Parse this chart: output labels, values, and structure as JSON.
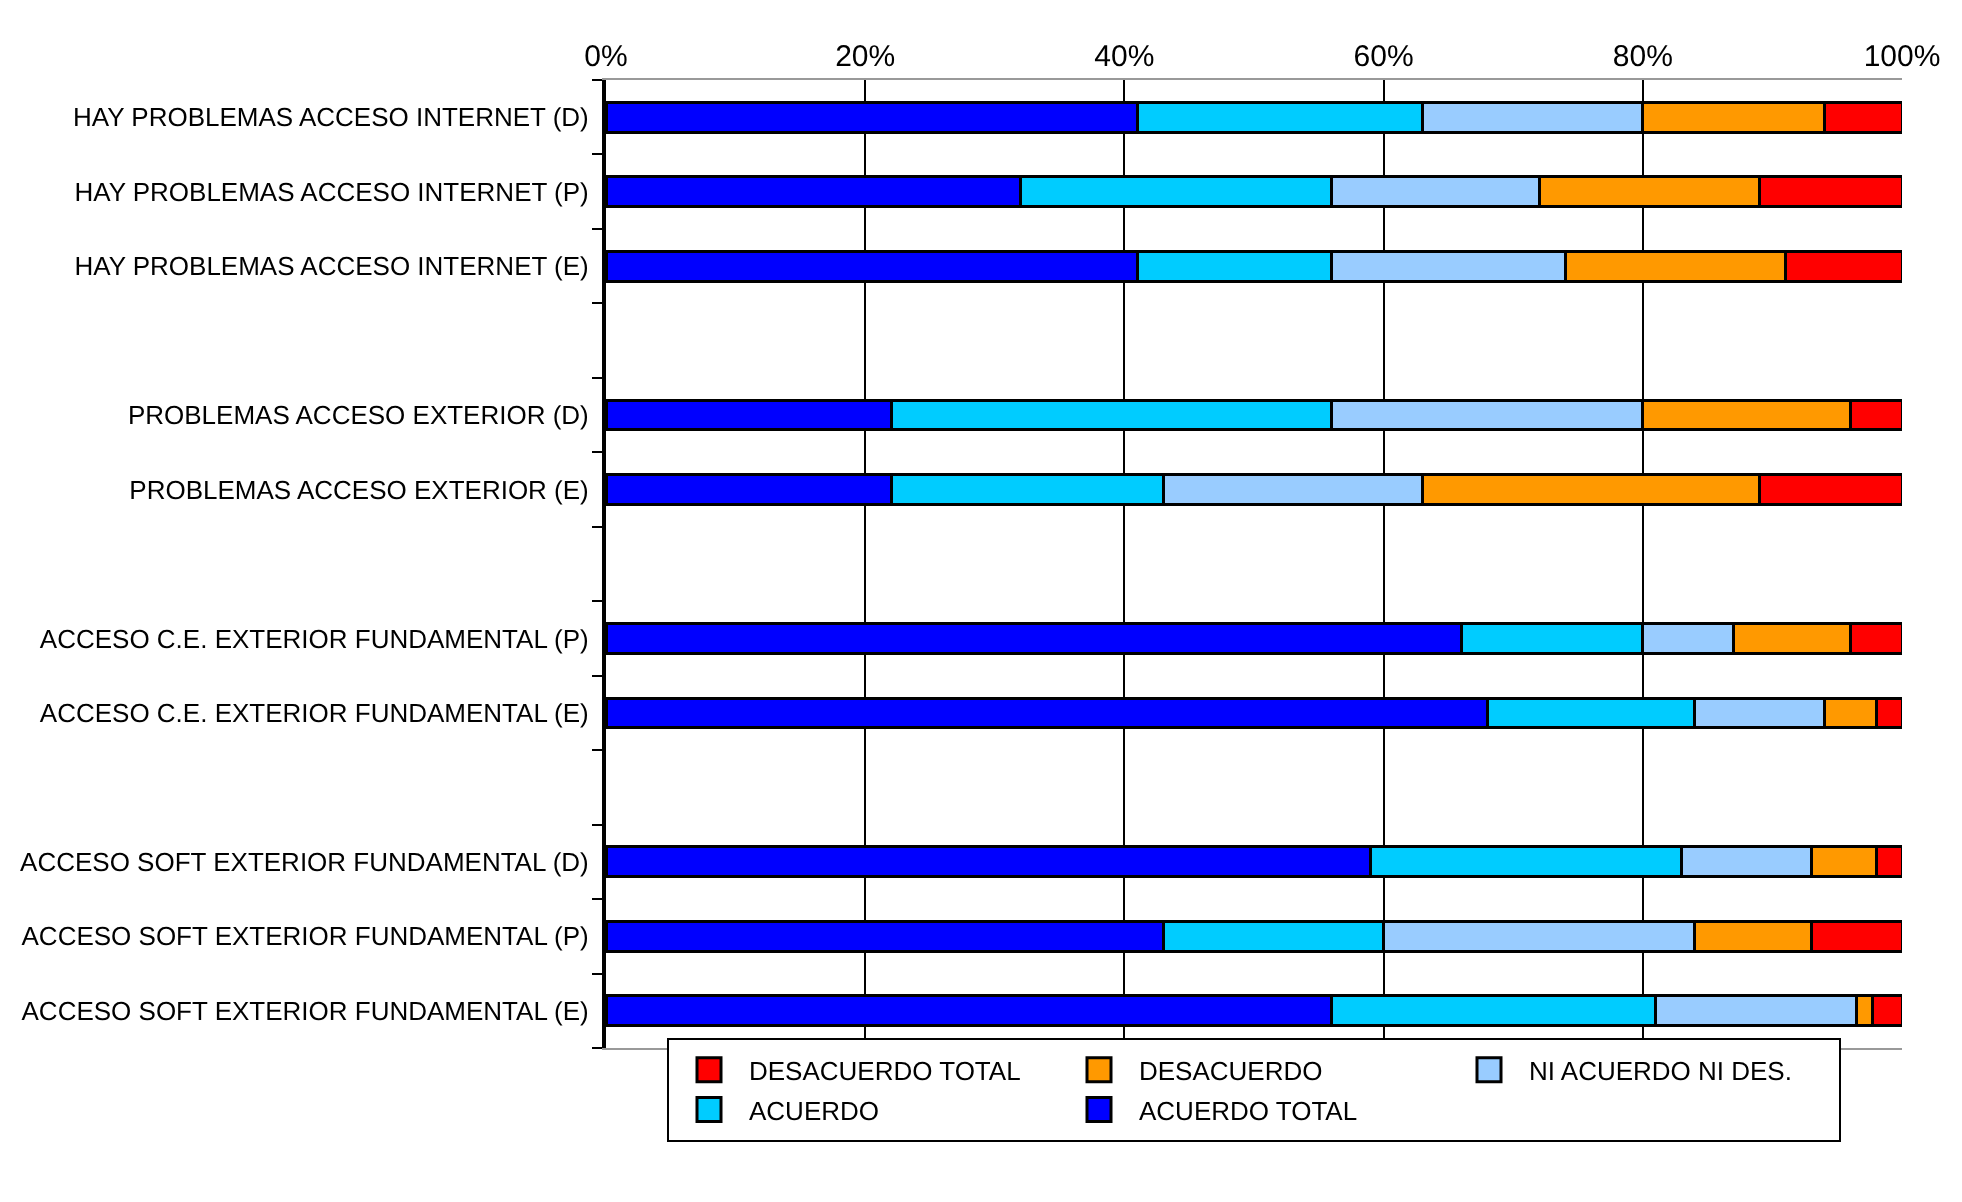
{
  "chart_data": {
    "type": "bar",
    "orientation": "horizontal",
    "stacked": true,
    "categories": [
      "HAY PROBLEMAS ACCESO INTERNET (D)",
      "HAY PROBLEMAS ACCESO INTERNET (P)",
      "HAY PROBLEMAS ACCESO INTERNET (E)",
      null,
      "PROBLEMAS ACCESO EXTERIOR (D)",
      "PROBLEMAS ACCESO EXTERIOR (E)",
      null,
      "ACCESO C.E. EXTERIOR FUNDAMENTAL (P)",
      "ACCESO C.E. EXTERIOR FUNDAMENTAL (E)",
      null,
      "ACCESO SOFT EXTERIOR FUNDAMENTAL (D)",
      "ACCESO SOFT EXTERIOR FUNDAMENTAL (P)",
      "ACCESO SOFT EXTERIOR FUNDAMENTAL (E)"
    ],
    "series": [
      {
        "name": "ACUERDO TOTAL",
        "color": "#0000ff",
        "values": [
          41,
          32,
          41,
          null,
          22,
          22,
          null,
          66,
          68,
          null,
          59,
          43,
          56
        ]
      },
      {
        "name": "ACUERDO",
        "color": "#00ccff",
        "values": [
          22,
          24,
          15,
          null,
          34,
          21,
          null,
          14,
          16,
          null,
          24,
          17,
          25
        ]
      },
      {
        "name": "NI ACUERDO NI DES.",
        "color": "#99ccff",
        "values": [
          17,
          16,
          18,
          null,
          24,
          20,
          null,
          7,
          10,
          null,
          10,
          24,
          15.5
        ]
      },
      {
        "name": "DESACUERDO",
        "color": "#ff9900",
        "values": [
          14,
          17,
          17,
          null,
          16,
          26,
          null,
          9,
          4,
          null,
          5,
          9,
          1.2
        ]
      },
      {
        "name": "DESACUERDO TOTAL",
        "color": "#ff0000",
        "values": [
          6,
          11,
          9,
          null,
          4,
          11,
          null,
          4,
          2,
          null,
          2,
          7,
          2.3
        ]
      }
    ],
    "xlim": [
      0,
      100
    ],
    "xticks": [
      {
        "value": 0,
        "label": "0%"
      },
      {
        "value": 20,
        "label": "20%"
      },
      {
        "value": 40,
        "label": "40%"
      },
      {
        "value": 60,
        "label": "60%"
      },
      {
        "value": 80,
        "label": "80%"
      },
      {
        "value": 100,
        "label": "100%"
      }
    ],
    "grid": "x",
    "legend": "bottom"
  }
}
